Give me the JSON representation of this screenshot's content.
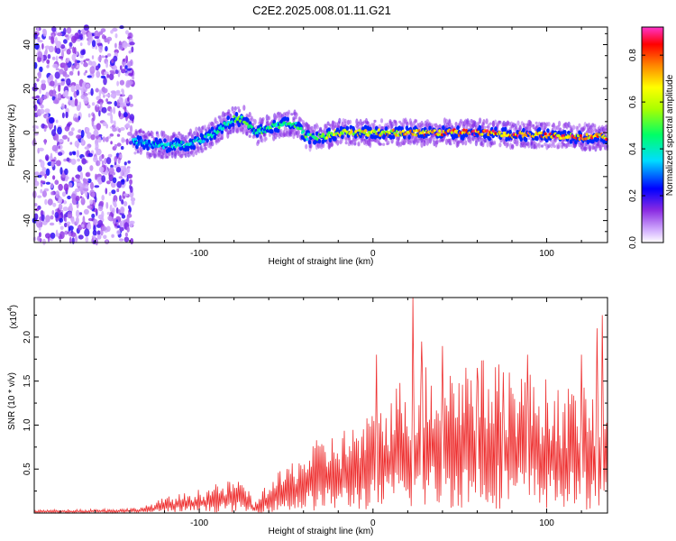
{
  "title": "C2E2.2025.008.01.11.G21",
  "chart_data": [
    {
      "type": "heatmap",
      "xlabel": "Height of straight line (km)",
      "ylabel": "Frequency (Hz)",
      "xlim": [
        -195,
        135
      ],
      "ylim": [
        -50,
        48
      ],
      "x_ticks": [
        -100,
        0,
        100
      ],
      "x_tick_labels": [
        "-100",
        "0",
        "100"
      ],
      "y_ticks": [
        -40,
        -20,
        0,
        20,
        40
      ],
      "y_tick_labels": [
        "-40",
        "-20",
        "0",
        "20",
        "40"
      ],
      "colorbar": {
        "label": "Normalized spectral amplitude",
        "range": [
          0,
          0.92
        ],
        "ticks": [
          0.0,
          0.2,
          0.4,
          0.6,
          0.8
        ],
        "tick_labels": [
          "0.0",
          "0.2",
          "0.4",
          "0.6",
          "0.8"
        ]
      },
      "noise_region_x": [
        -195,
        -138
      ],
      "ridge": {
        "x": [
          -138,
          -120,
          -105,
          -95,
          -88,
          -80,
          -74,
          -68,
          -60,
          -52,
          -45,
          -38,
          -30,
          -20,
          0,
          20,
          40,
          60,
          80,
          100,
          120,
          135
        ],
        "freq": [
          -4,
          -6,
          -5,
          -2,
          2,
          6,
          6,
          0,
          2,
          4,
          4,
          -2,
          -2,
          0,
          0,
          0,
          0,
          0,
          -1,
          -1,
          -2,
          -2
        ],
        "amplitude": [
          0.35,
          0.4,
          0.4,
          0.45,
          0.45,
          0.5,
          0.5,
          0.45,
          0.5,
          0.45,
          0.5,
          0.5,
          0.55,
          0.65,
          0.7,
          0.75,
          0.8,
          0.85,
          0.85,
          0.85,
          0.8,
          0.8
        ]
      },
      "grid": false
    },
    {
      "type": "line",
      "xlabel": "Height of straight line (km)",
      "ylabel": "SNR (10 * v/v)",
      "y_scale_label": "(x10",
      "y_scale_exponent": "4",
      "xlim": [
        -195,
        135
      ],
      "ylim": [
        0,
        2.45
      ],
      "x_ticks": [
        -100,
        0,
        100
      ],
      "x_tick_labels": [
        "-100",
        "0",
        "100"
      ],
      "y_ticks": [
        0.5,
        1.0,
        1.5,
        2.0
      ],
      "y_tick_labels": [
        "0.5",
        "1.0",
        "1.5",
        "2.0"
      ],
      "color": "#ee3030",
      "envelope": {
        "x": [
          -195,
          -140,
          -130,
          -120,
          -100,
          -85,
          -75,
          -68,
          -62,
          -55,
          -45,
          -35,
          -25,
          -15,
          -5,
          5,
          15,
          22,
          30,
          40,
          50,
          60,
          70,
          80,
          90,
          100,
          110,
          120,
          130,
          135
        ],
        "y": [
          0.02,
          0.03,
          0.05,
          0.1,
          0.15,
          0.2,
          0.22,
          0.06,
          0.18,
          0.25,
          0.35,
          0.45,
          0.5,
          0.55,
          0.6,
          0.7,
          0.85,
          0.9,
          0.95,
          0.95,
          1.0,
          1.0,
          0.95,
          0.95,
          0.9,
          0.85,
          0.8,
          0.8,
          0.75,
          0.7
        ]
      },
      "peaks": [
        {
          "x": 2,
          "y": 1.8
        },
        {
          "x": 23,
          "y": 2.45
        },
        {
          "x": 28,
          "y": 1.95
        },
        {
          "x": 40,
          "y": 1.9
        },
        {
          "x": 60,
          "y": 1.65
        },
        {
          "x": 75,
          "y": 1.6
        },
        {
          "x": 89,
          "y": 1.8
        },
        {
          "x": 120,
          "y": 1.8
        },
        {
          "x": 129,
          "y": 2.1
        },
        {
          "x": 132,
          "y": 2.25
        }
      ],
      "grid": false
    }
  ]
}
